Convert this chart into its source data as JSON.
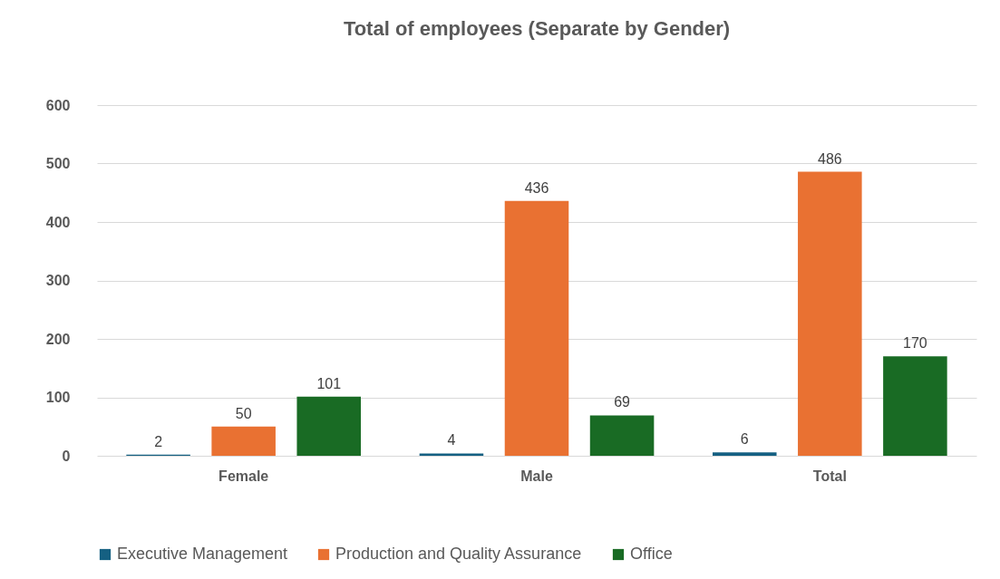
{
  "chart_data": {
    "type": "bar",
    "title": "Total of employees  (Separate by Gender)",
    "categories": [
      "Female",
      "Male",
      "Total"
    ],
    "series": [
      {
        "name": "Executive Management",
        "color": "#156082",
        "values": [
          2,
          4,
          6
        ]
      },
      {
        "name": "Production and Quality Assurance",
        "color": "#e97132",
        "values": [
          50,
          436,
          486
        ]
      },
      {
        "name": "Office",
        "color": "#196b24",
        "values": [
          101,
          69,
          170
        ]
      }
    ],
    "ylim": [
      0,
      600
    ],
    "yticks": [
      0,
      100,
      200,
      300,
      400,
      500,
      600
    ],
    "grid": "y",
    "legend": "bottom",
    "data_labels": true
  }
}
